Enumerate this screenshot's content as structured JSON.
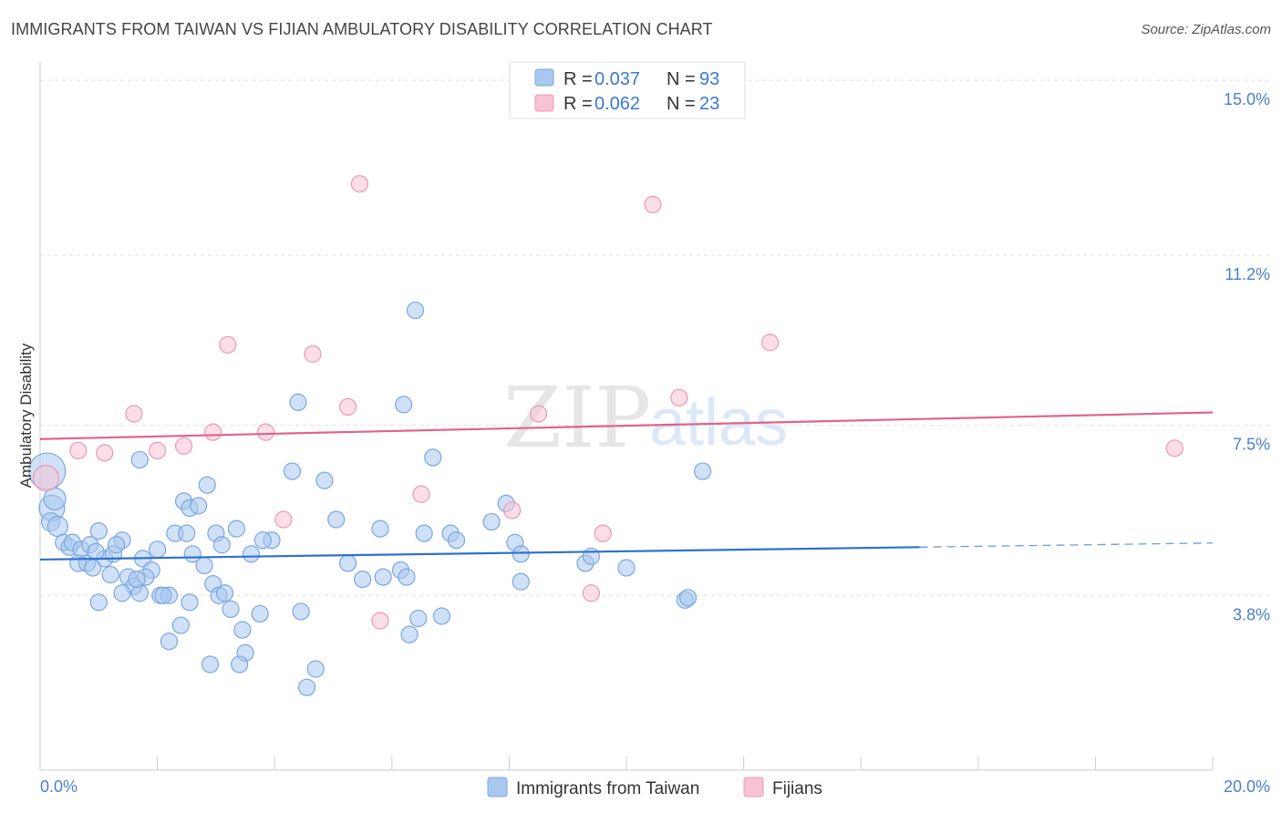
{
  "header": {
    "title": "IMMIGRANTS FROM TAIWAN VS FIJIAN AMBULATORY DISABILITY CORRELATION CHART",
    "source": "Source: ZipAtlas.com"
  },
  "watermark": {
    "zip": "ZIP",
    "atlas": "atlas"
  },
  "legend": {
    "rows": [
      {
        "r_label": "R = ",
        "r_value": "0.037",
        "n_label": "N = ",
        "n_value": "93"
      },
      {
        "r_label": "R = ",
        "r_value": "0.062",
        "n_label": "N = ",
        "n_value": "23"
      }
    ]
  },
  "bottom_legend": {
    "series1": "Immigrants from Taiwan",
    "series2": "Fijians"
  },
  "colors": {
    "blue_fill": "#a9c8f0",
    "blue_stroke": "#7aa6e0",
    "blue_line": "#2e72cc",
    "pink_fill": "#f7c3d3",
    "pink_stroke": "#e99ab4",
    "pink_line": "#e0648e",
    "tick_text": "#4a7fd1",
    "grid": "#dddddd"
  },
  "chart_data": {
    "type": "scatter",
    "title": "IMMIGRANTS FROM TAIWAN VS FIJIAN AMBULATORY DISABILITY CORRELATION CHART",
    "xlabel": "",
    "ylabel": "Ambulatory Disability",
    "xlim": [
      0,
      20
    ],
    "ylim": [
      0,
      15.4
    ],
    "x_tick_labels": [
      "0.0%",
      "20.0%"
    ],
    "y_ticks": [
      3.8,
      7.5,
      11.2,
      15.0
    ],
    "y_tick_labels": [
      "3.8%",
      "7.5%",
      "11.2%",
      "15.0%"
    ],
    "series": [
      {
        "name": "Immigrants from Taiwan",
        "r": 0.037,
        "n": 93,
        "trend": {
          "x0": 0,
          "y0": 4.58,
          "x1": 15.0,
          "y1": 4.85,
          "dashed_to_x": 20.0,
          "dashed_to_y": 4.94
        },
        "points": [
          [
            0.12,
            6.5,
            20
          ],
          [
            0.2,
            5.7,
            14
          ],
          [
            0.25,
            5.9,
            12
          ],
          [
            0.18,
            5.4,
            10
          ],
          [
            0.3,
            5.3,
            11
          ],
          [
            0.4,
            4.95,
            9
          ],
          [
            0.5,
            4.85,
            9
          ],
          [
            0.55,
            4.95,
            9
          ],
          [
            0.7,
            4.8,
            9
          ],
          [
            0.85,
            4.9,
            9
          ],
          [
            0.65,
            4.5,
            9
          ],
          [
            0.8,
            4.5,
            9
          ],
          [
            0.9,
            4.4,
            9
          ],
          [
            1.1,
            4.6,
            9
          ],
          [
            1.25,
            4.7,
            9
          ],
          [
            1.0,
            5.2,
            9
          ],
          [
            1.4,
            5.0,
            9
          ],
          [
            1.3,
            4.9,
            9
          ],
          [
            1.2,
            4.25,
            9
          ],
          [
            1.5,
            4.2,
            9
          ],
          [
            1.6,
            4.0,
            9
          ],
          [
            1.7,
            3.85,
            9
          ],
          [
            1.75,
            4.6,
            9
          ],
          [
            1.9,
            4.35,
            9
          ],
          [
            2.0,
            4.8,
            9
          ],
          [
            2.05,
            3.8,
            9
          ],
          [
            2.2,
            3.8,
            9
          ],
          [
            2.1,
            3.8,
            9
          ],
          [
            1.0,
            3.65,
            9
          ],
          [
            2.3,
            5.15,
            9
          ],
          [
            2.5,
            5.15,
            9
          ],
          [
            2.6,
            4.7,
            9
          ],
          [
            2.4,
            3.15,
            9
          ],
          [
            2.2,
            2.8,
            9
          ],
          [
            1.8,
            4.2,
            9
          ],
          [
            2.45,
            5.85,
            9
          ],
          [
            2.55,
            5.7,
            9
          ],
          [
            2.7,
            5.75,
            9
          ],
          [
            2.8,
            4.45,
            9
          ],
          [
            2.85,
            6.2,
            9
          ],
          [
            3.0,
            5.15,
            9
          ],
          [
            3.1,
            4.9,
            9
          ],
          [
            2.95,
            4.05,
            9
          ],
          [
            3.05,
            3.8,
            9
          ],
          [
            3.15,
            3.85,
            9
          ],
          [
            3.25,
            3.5,
            9
          ],
          [
            3.35,
            5.25,
            9
          ],
          [
            3.45,
            3.05,
            9
          ],
          [
            3.6,
            4.7,
            9
          ],
          [
            3.5,
            2.55,
            9
          ],
          [
            3.4,
            2.3,
            9
          ],
          [
            3.75,
            3.4,
            9
          ],
          [
            3.95,
            5.0,
            9
          ],
          [
            4.3,
            6.5,
            9
          ],
          [
            4.45,
            3.45,
            9
          ],
          [
            4.55,
            1.8,
            9
          ],
          [
            4.7,
            2.2,
            9
          ],
          [
            4.85,
            6.3,
            9
          ],
          [
            5.05,
            5.45,
            9
          ],
          [
            5.25,
            4.5,
            9
          ],
          [
            5.5,
            4.15,
            9
          ],
          [
            5.8,
            5.25,
            9
          ],
          [
            6.15,
            4.35,
            9
          ],
          [
            6.25,
            4.2,
            9
          ],
          [
            6.45,
            3.3,
            9
          ],
          [
            6.55,
            5.15,
            9
          ],
          [
            6.7,
            6.8,
            9
          ],
          [
            6.85,
            3.35,
            9
          ],
          [
            7.0,
            5.15,
            9
          ],
          [
            7.7,
            5.4,
            9
          ],
          [
            7.95,
            5.8,
            9
          ],
          [
            8.1,
            4.95,
            9
          ],
          [
            8.2,
            4.1,
            9
          ],
          [
            8.2,
            4.7,
            9
          ],
          [
            9.3,
            4.5,
            9
          ],
          [
            9.4,
            4.65,
            9
          ],
          [
            10.0,
            4.4,
            9
          ],
          [
            11.0,
            3.7,
            9
          ],
          [
            11.05,
            3.75,
            9
          ],
          [
            11.3,
            6.5,
            9
          ],
          [
            4.4,
            8.0,
            9
          ],
          [
            6.2,
            7.95,
            9
          ],
          [
            6.4,
            10.0,
            9
          ],
          [
            1.7,
            6.75,
            9
          ],
          [
            2.55,
            3.65,
            9
          ],
          [
            3.8,
            5.0,
            9
          ],
          [
            1.4,
            3.85,
            9
          ],
          [
            0.95,
            4.75,
            9
          ],
          [
            2.9,
            2.3,
            9
          ],
          [
            1.65,
            4.15,
            9
          ],
          [
            5.85,
            4.2,
            9
          ],
          [
            6.3,
            2.95,
            9
          ],
          [
            7.1,
            5.0,
            9
          ]
        ]
      },
      {
        "name": "Fijians",
        "r": 0.062,
        "n": 23,
        "trend": {
          "x0": 0,
          "y0": 7.2,
          "x1": 20.0,
          "y1": 7.78
        },
        "points": [
          [
            0.1,
            6.35,
            14
          ],
          [
            0.65,
            6.95,
            9
          ],
          [
            1.1,
            6.9,
            9
          ],
          [
            1.6,
            7.75,
            9
          ],
          [
            2.0,
            6.95,
            9
          ],
          [
            2.45,
            7.05,
            9
          ],
          [
            2.95,
            7.35,
            9
          ],
          [
            3.2,
            9.25,
            9
          ],
          [
            3.85,
            7.35,
            9
          ],
          [
            4.15,
            5.45,
            9
          ],
          [
            4.65,
            9.05,
            9
          ],
          [
            5.25,
            7.9,
            9
          ],
          [
            5.45,
            12.75,
            9
          ],
          [
            5.8,
            3.25,
            9
          ],
          [
            6.5,
            6.0,
            9
          ],
          [
            8.05,
            5.65,
            9
          ],
          [
            8.5,
            7.75,
            9
          ],
          [
            9.4,
            3.85,
            9
          ],
          [
            9.6,
            5.15,
            9
          ],
          [
            10.45,
            12.3,
            9
          ],
          [
            10.9,
            8.1,
            9
          ],
          [
            12.45,
            9.3,
            9
          ],
          [
            19.35,
            7.0,
            9
          ]
        ]
      }
    ]
  }
}
